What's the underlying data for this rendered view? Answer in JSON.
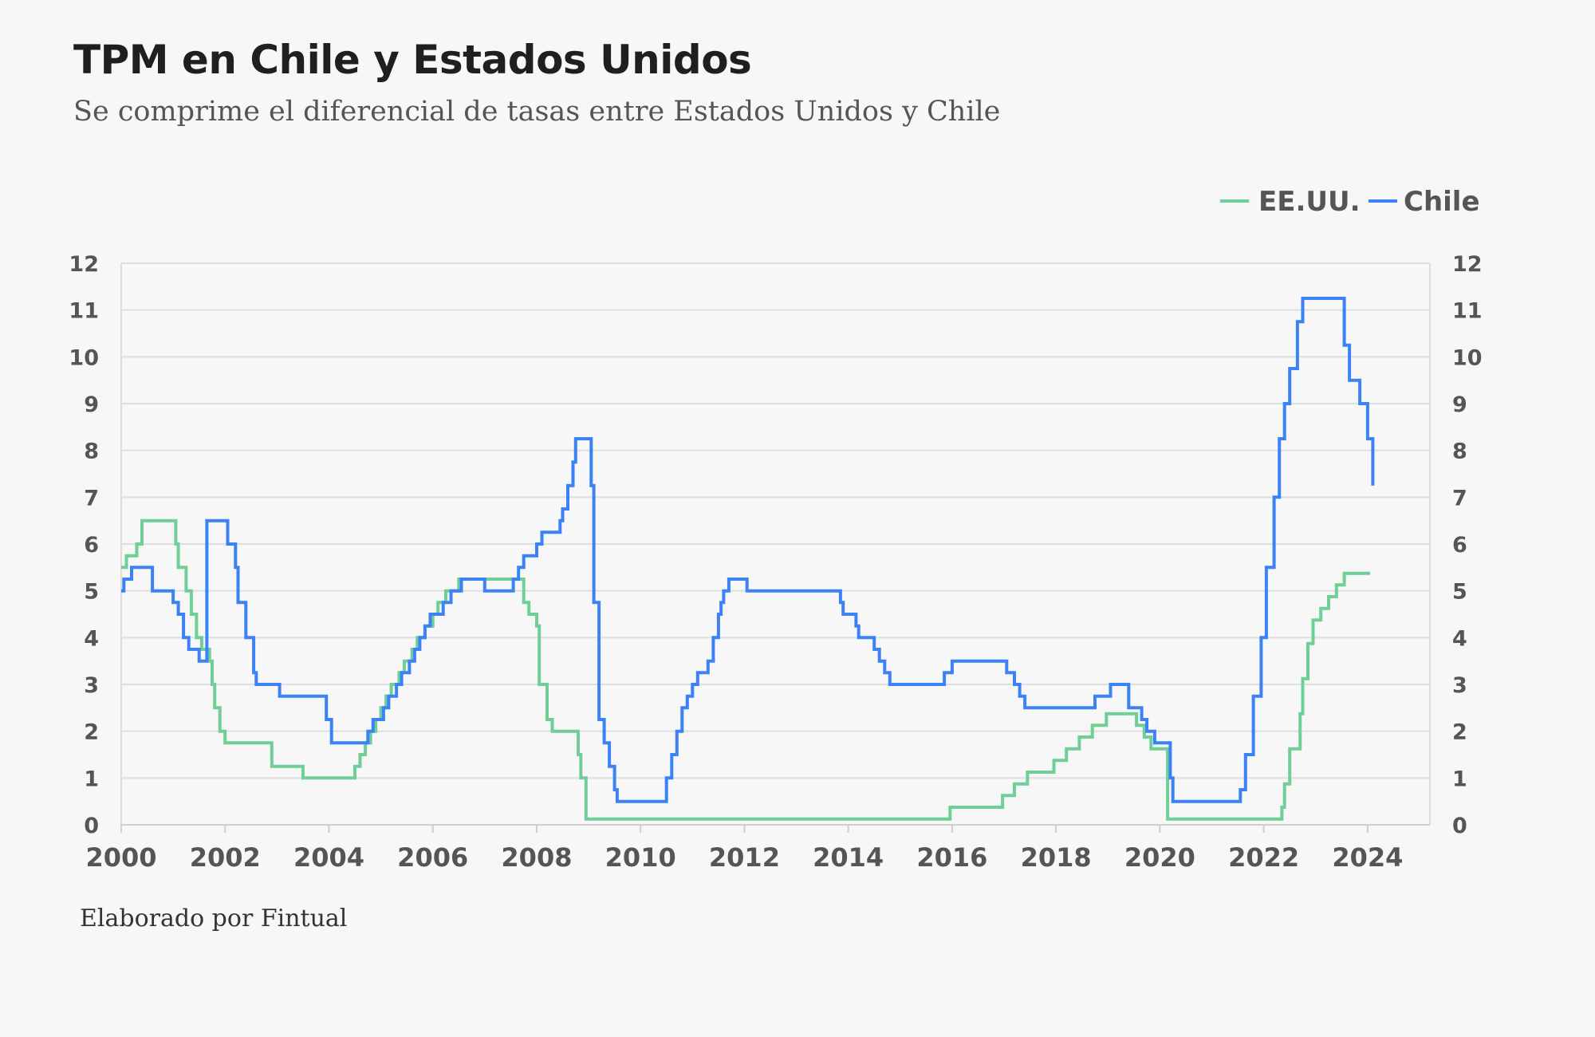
{
  "title": "TPM en Chile y Estados Unidos",
  "subtitle": "Se comprime el diferencial de tasas entre Estados Unidos y Chile",
  "credit": "Elaborado por Fintual",
  "chart_data": {
    "type": "line",
    "title": "TPM en Chile y Estados Unidos",
    "xlabel": "",
    "ylabel": "",
    "xlim": [
      2000,
      2025.2
    ],
    "ylim": [
      0,
      12
    ],
    "x_ticks": [
      2000,
      2002,
      2004,
      2006,
      2008,
      2010,
      2012,
      2014,
      2016,
      2018,
      2020,
      2022,
      2024
    ],
    "y_ticks": [
      0,
      1,
      2,
      3,
      4,
      5,
      6,
      7,
      8,
      9,
      10,
      11,
      12
    ],
    "grid": true,
    "legend": "top-right",
    "step": true,
    "series": [
      {
        "name": "EE.UU.",
        "color": "#6fcf97",
        "points": [
          [
            2000.0,
            5.5
          ],
          [
            2000.1,
            5.75
          ],
          [
            2000.2,
            5.75
          ],
          [
            2000.3,
            6.0
          ],
          [
            2000.4,
            6.5
          ],
          [
            2001.0,
            6.5
          ],
          [
            2001.05,
            6.0
          ],
          [
            2001.1,
            5.5
          ],
          [
            2001.25,
            5.0
          ],
          [
            2001.35,
            4.5
          ],
          [
            2001.45,
            4.0
          ],
          [
            2001.55,
            3.75
          ],
          [
            2001.7,
            3.5
          ],
          [
            2001.75,
            3.0
          ],
          [
            2001.8,
            2.5
          ],
          [
            2001.9,
            2.0
          ],
          [
            2002.0,
            1.75
          ],
          [
            2002.9,
            1.25
          ],
          [
            2003.5,
            1.0
          ],
          [
            2004.5,
            1.25
          ],
          [
            2004.6,
            1.5
          ],
          [
            2004.7,
            1.75
          ],
          [
            2004.8,
            2.0
          ],
          [
            2004.9,
            2.25
          ],
          [
            2005.0,
            2.5
          ],
          [
            2005.1,
            2.75
          ],
          [
            2005.2,
            3.0
          ],
          [
            2005.35,
            3.25
          ],
          [
            2005.45,
            3.5
          ],
          [
            2005.6,
            3.75
          ],
          [
            2005.7,
            4.0
          ],
          [
            2005.85,
            4.25
          ],
          [
            2006.0,
            4.5
          ],
          [
            2006.1,
            4.75
          ],
          [
            2006.25,
            5.0
          ],
          [
            2006.5,
            5.25
          ],
          [
            2007.7,
            5.25
          ],
          [
            2007.75,
            4.75
          ],
          [
            2007.85,
            4.5
          ],
          [
            2008.0,
            4.25
          ],
          [
            2008.05,
            3.0
          ],
          [
            2008.2,
            2.25
          ],
          [
            2008.3,
            2.0
          ],
          [
            2008.8,
            1.5
          ],
          [
            2008.85,
            1.0
          ],
          [
            2008.95,
            0.125
          ],
          [
            2015.95,
            0.125
          ],
          [
            2015.96,
            0.375
          ],
          [
            2016.96,
            0.375
          ],
          [
            2016.97,
            0.625
          ],
          [
            2017.2,
            0.875
          ],
          [
            2017.45,
            1.125
          ],
          [
            2017.96,
            1.375
          ],
          [
            2018.2,
            1.625
          ],
          [
            2018.45,
            1.875
          ],
          [
            2018.7,
            2.125
          ],
          [
            2018.97,
            2.375
          ],
          [
            2019.55,
            2.125
          ],
          [
            2019.7,
            1.875
          ],
          [
            2019.83,
            1.625
          ],
          [
            2020.15,
            0.125
          ],
          [
            2022.2,
            0.125
          ],
          [
            2022.35,
            0.375
          ],
          [
            2022.4,
            0.875
          ],
          [
            2022.5,
            1.625
          ],
          [
            2022.7,
            2.375
          ],
          [
            2022.75,
            3.125
          ],
          [
            2022.85,
            3.875
          ],
          [
            2022.95,
            4.375
          ],
          [
            2023.1,
            4.625
          ],
          [
            2023.25,
            4.875
          ],
          [
            2023.4,
            5.125
          ],
          [
            2023.55,
            5.375
          ],
          [
            2024.05,
            5.375
          ]
        ]
      },
      {
        "name": "Chile",
        "color": "#3b82f6",
        "points": [
          [
            2000.0,
            5.0
          ],
          [
            2000.05,
            5.25
          ],
          [
            2000.2,
            5.5
          ],
          [
            2000.6,
            5.0
          ],
          [
            2001.0,
            4.75
          ],
          [
            2001.1,
            4.5
          ],
          [
            2001.2,
            4.0
          ],
          [
            2001.3,
            3.75
          ],
          [
            2001.5,
            3.5
          ],
          [
            2001.65,
            6.5
          ],
          [
            2002.05,
            6.0
          ],
          [
            2002.2,
            5.5
          ],
          [
            2002.25,
            4.75
          ],
          [
            2002.4,
            4.0
          ],
          [
            2002.55,
            3.25
          ],
          [
            2002.6,
            3.0
          ],
          [
            2003.05,
            2.75
          ],
          [
            2003.95,
            2.25
          ],
          [
            2004.05,
            1.75
          ],
          [
            2004.75,
            2.0
          ],
          [
            2004.85,
            2.25
          ],
          [
            2005.05,
            2.5
          ],
          [
            2005.15,
            2.75
          ],
          [
            2005.3,
            3.0
          ],
          [
            2005.4,
            3.25
          ],
          [
            2005.55,
            3.5
          ],
          [
            2005.65,
            3.75
          ],
          [
            2005.75,
            4.0
          ],
          [
            2005.85,
            4.25
          ],
          [
            2005.95,
            4.5
          ],
          [
            2006.2,
            4.75
          ],
          [
            2006.35,
            5.0
          ],
          [
            2006.55,
            5.25
          ],
          [
            2007.0,
            5.0
          ],
          [
            2007.55,
            5.25
          ],
          [
            2007.65,
            5.5
          ],
          [
            2007.75,
            5.75
          ],
          [
            2008.0,
            6.0
          ],
          [
            2008.1,
            6.25
          ],
          [
            2008.45,
            6.5
          ],
          [
            2008.5,
            6.75
          ],
          [
            2008.6,
            7.25
          ],
          [
            2008.7,
            7.75
          ],
          [
            2008.75,
            8.25
          ],
          [
            2009.05,
            7.25
          ],
          [
            2009.1,
            4.75
          ],
          [
            2009.2,
            2.25
          ],
          [
            2009.3,
            1.75
          ],
          [
            2009.4,
            1.25
          ],
          [
            2009.5,
            0.75
          ],
          [
            2009.55,
            0.5
          ],
          [
            2010.5,
            1.0
          ],
          [
            2010.6,
            1.5
          ],
          [
            2010.7,
            2.0
          ],
          [
            2010.8,
            2.5
          ],
          [
            2010.9,
            2.75
          ],
          [
            2011.0,
            3.0
          ],
          [
            2011.1,
            3.25
          ],
          [
            2011.3,
            3.5
          ],
          [
            2011.4,
            4.0
          ],
          [
            2011.5,
            4.5
          ],
          [
            2011.55,
            4.75
          ],
          [
            2011.6,
            5.0
          ],
          [
            2011.7,
            5.25
          ],
          [
            2012.05,
            5.0
          ],
          [
            2013.85,
            4.75
          ],
          [
            2013.9,
            4.5
          ],
          [
            2014.15,
            4.25
          ],
          [
            2014.2,
            4.0
          ],
          [
            2014.5,
            3.75
          ],
          [
            2014.6,
            3.5
          ],
          [
            2014.7,
            3.25
          ],
          [
            2014.8,
            3.0
          ],
          [
            2015.85,
            3.25
          ],
          [
            2016.0,
            3.5
          ],
          [
            2017.05,
            3.25
          ],
          [
            2017.2,
            3.0
          ],
          [
            2017.3,
            2.75
          ],
          [
            2017.4,
            2.5
          ],
          [
            2018.75,
            2.75
          ],
          [
            2019.05,
            3.0
          ],
          [
            2019.4,
            2.5
          ],
          [
            2019.65,
            2.25
          ],
          [
            2019.75,
            2.0
          ],
          [
            2019.9,
            1.75
          ],
          [
            2020.2,
            1.0
          ],
          [
            2020.25,
            0.5
          ],
          [
            2021.55,
            0.75
          ],
          [
            2021.65,
            1.5
          ],
          [
            2021.8,
            2.75
          ],
          [
            2021.95,
            4.0
          ],
          [
            2022.05,
            5.5
          ],
          [
            2022.2,
            7.0
          ],
          [
            2022.3,
            8.25
          ],
          [
            2022.4,
            9.0
          ],
          [
            2022.5,
            9.75
          ],
          [
            2022.65,
            10.75
          ],
          [
            2022.75,
            11.25
          ],
          [
            2023.55,
            10.25
          ],
          [
            2023.65,
            9.5
          ],
          [
            2023.85,
            9.0
          ],
          [
            2024.0,
            8.25
          ],
          [
            2024.1,
            7.25
          ]
        ]
      }
    ]
  }
}
